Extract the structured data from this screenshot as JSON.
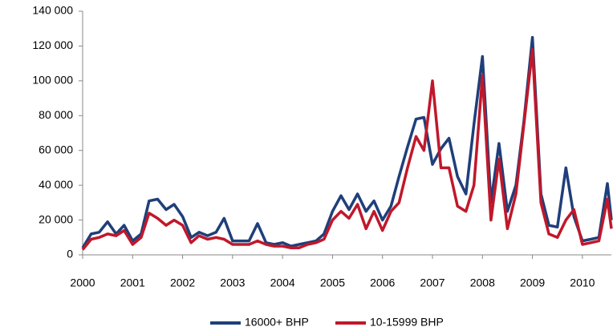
{
  "chart_data": {
    "type": "line",
    "x": [
      2000,
      2000.17,
      2000.33,
      2000.5,
      2000.67,
      2000.83,
      2001,
      2001.17,
      2001.33,
      2001.5,
      2001.67,
      2001.83,
      2002,
      2002.17,
      2002.33,
      2002.5,
      2002.67,
      2002.83,
      2003,
      2003.17,
      2003.33,
      2003.5,
      2003.67,
      2003.83,
      2004,
      2004.17,
      2004.33,
      2004.5,
      2004.67,
      2004.83,
      2005,
      2005.17,
      2005.33,
      2005.5,
      2005.67,
      2005.83,
      2006,
      2006.17,
      2006.33,
      2006.5,
      2006.67,
      2006.83,
      2007,
      2007.17,
      2007.33,
      2007.5,
      2007.67,
      2007.83,
      2008,
      2008.17,
      2008.33,
      2008.5,
      2008.67,
      2008.83,
      2009,
      2009.17,
      2009.33,
      2009.5,
      2009.67,
      2009.83,
      2010,
      2010.17,
      2010.33,
      2010.5,
      2010.58
    ],
    "series": [
      {
        "name": "16000+ BHP",
        "color": "#1f3f7a",
        "values": [
          4000,
          12000,
          13000,
          19000,
          12000,
          17000,
          8000,
          12000,
          31000,
          32000,
          26000,
          29000,
          22000,
          10000,
          13000,
          11000,
          13000,
          21000,
          8000,
          8000,
          8000,
          18000,
          7000,
          6000,
          7000,
          5000,
          6000,
          7000,
          8000,
          12000,
          25000,
          34000,
          26000,
          35000,
          25000,
          31000,
          20000,
          28000,
          45000,
          62000,
          78000,
          79000,
          52000,
          61000,
          67000,
          45000,
          35000,
          75000,
          114000,
          30000,
          64000,
          25000,
          40000,
          77000,
          125000,
          35000,
          17000,
          16000,
          50000,
          22000,
          8000,
          9000,
          10000,
          41000,
          20000
        ]
      },
      {
        "name": "10-15999 BHP",
        "color": "#c0182a",
        "values": [
          3000,
          9000,
          10000,
          12000,
          11000,
          14000,
          6000,
          10000,
          24000,
          21000,
          17000,
          20000,
          17000,
          7000,
          11000,
          9000,
          10000,
          9000,
          6000,
          6000,
          6000,
          8000,
          6000,
          5000,
          5000,
          4000,
          4000,
          6000,
          7000,
          9000,
          20000,
          25000,
          21000,
          29000,
          15000,
          25000,
          14000,
          25000,
          30000,
          50000,
          68000,
          60000,
          100000,
          50000,
          50000,
          28000,
          25000,
          40000,
          103000,
          20000,
          55000,
          15000,
          35000,
          75000,
          118000,
          30000,
          12000,
          10000,
          20000,
          26000,
          6000,
          7000,
          8000,
          32000,
          15000
        ]
      }
    ],
    "xlim": [
      2000,
      2010.58
    ],
    "xticks": [
      2000,
      2001,
      2002,
      2003,
      2004,
      2005,
      2006,
      2007,
      2008,
      2009,
      2010
    ],
    "ylim": [
      0,
      140000
    ],
    "yticks": [
      0,
      {
        "value": 20000,
        "label": "20 000"
      },
      {
        "value": 40000,
        "label": "40 000"
      },
      {
        "value": 60000,
        "label": "60 000"
      },
      {
        "value": 80000,
        "label": "80 000"
      },
      {
        "value": 100000,
        "label": "100 000"
      },
      {
        "value": 120000,
        "label": "120 000"
      },
      {
        "value": 140000,
        "label": "140 000"
      }
    ],
    "grid": false,
    "legend": "bottom"
  }
}
